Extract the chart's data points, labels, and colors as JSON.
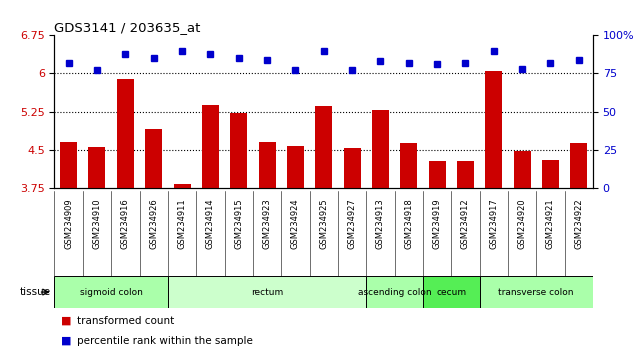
{
  "title": "GDS3141 / 203635_at",
  "samples": [
    "GSM234909",
    "GSM234910",
    "GSM234916",
    "GSM234926",
    "GSM234911",
    "GSM234914",
    "GSM234915",
    "GSM234923",
    "GSM234924",
    "GSM234925",
    "GSM234927",
    "GSM234913",
    "GSM234918",
    "GSM234919",
    "GSM234912",
    "GSM234917",
    "GSM234920",
    "GSM234921",
    "GSM234922"
  ],
  "bar_values": [
    4.65,
    4.55,
    5.9,
    4.9,
    3.82,
    5.38,
    5.22,
    4.65,
    4.57,
    5.35,
    4.53,
    5.27,
    4.63,
    4.27,
    4.27,
    6.05,
    4.48,
    4.3,
    4.63
  ],
  "dot_values": [
    82,
    77,
    88,
    85,
    90,
    88,
    85,
    84,
    77,
    90,
    77,
    83,
    82,
    81,
    82,
    90,
    78,
    82,
    84
  ],
  "bar_color": "#cc0000",
  "dot_color": "#0000cc",
  "ylim_left": [
    3.75,
    6.75
  ],
  "ylim_right": [
    0,
    100
  ],
  "yticks_left": [
    3.75,
    4.5,
    5.25,
    6.0,
    6.75
  ],
  "ytick_labels_left": [
    "3.75",
    "4.5",
    "5.25",
    "6",
    "6.75"
  ],
  "yticks_right": [
    0,
    25,
    50,
    75,
    100
  ],
  "ytick_labels_right": [
    "0",
    "25",
    "50",
    "75",
    "100%"
  ],
  "hlines": [
    4.5,
    5.25,
    6.0
  ],
  "tissue_groups": [
    {
      "label": "sigmoid colon",
      "start": 0,
      "end": 4,
      "color": "#aaffaa"
    },
    {
      "label": "rectum",
      "start": 4,
      "end": 11,
      "color": "#ccffcc"
    },
    {
      "label": "ascending colon",
      "start": 11,
      "end": 13,
      "color": "#aaffaa"
    },
    {
      "label": "cecum",
      "start": 13,
      "end": 15,
      "color": "#55ee55"
    },
    {
      "label": "transverse colon",
      "start": 15,
      "end": 19,
      "color": "#aaffaa"
    }
  ],
  "legend_bar_label": "transformed count",
  "legend_dot_label": "percentile rank within the sample",
  "tissue_label": "tissue",
  "bg_color": "#ffffff",
  "tick_area_color": "#cccccc"
}
